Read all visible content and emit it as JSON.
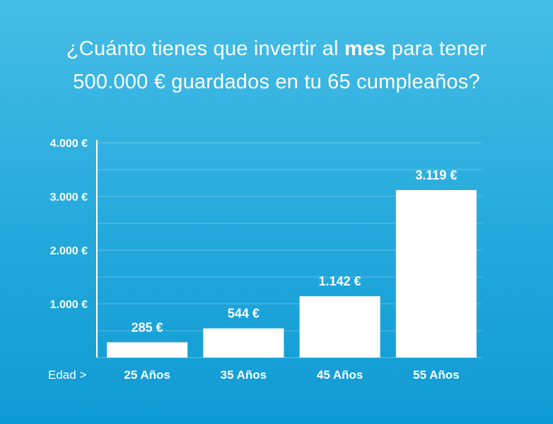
{
  "title": {
    "line1_before": "¿Cuánto tienes que invertir al ",
    "line1_bold": "mes",
    "line1_after": " para tener",
    "line2": "500.000 € guardados en tu 65 cumpleaños?"
  },
  "chart_data": {
    "type": "bar",
    "title": "¿Cuánto tienes que invertir al mes para tener 500.000 € guardados en tu 65 cumpleaños?",
    "xlabel": "Edad >",
    "ylabel": "",
    "categories": [
      "25 Años",
      "35 Años",
      "45 Años",
      "55 Años"
    ],
    "values": [
      285,
      544,
      1142,
      3119
    ],
    "value_labels": [
      "285 €",
      "544 €",
      "1.142 €",
      "3.119 €"
    ],
    "ylim": [
      0,
      4000
    ],
    "yticks": [
      1000,
      2000,
      3000,
      4000
    ],
    "ytick_labels": [
      "1.000 €",
      "2.000 €",
      "3.000 €",
      "4.000 €"
    ],
    "grid": true,
    "bar_color": "#ffffff"
  }
}
